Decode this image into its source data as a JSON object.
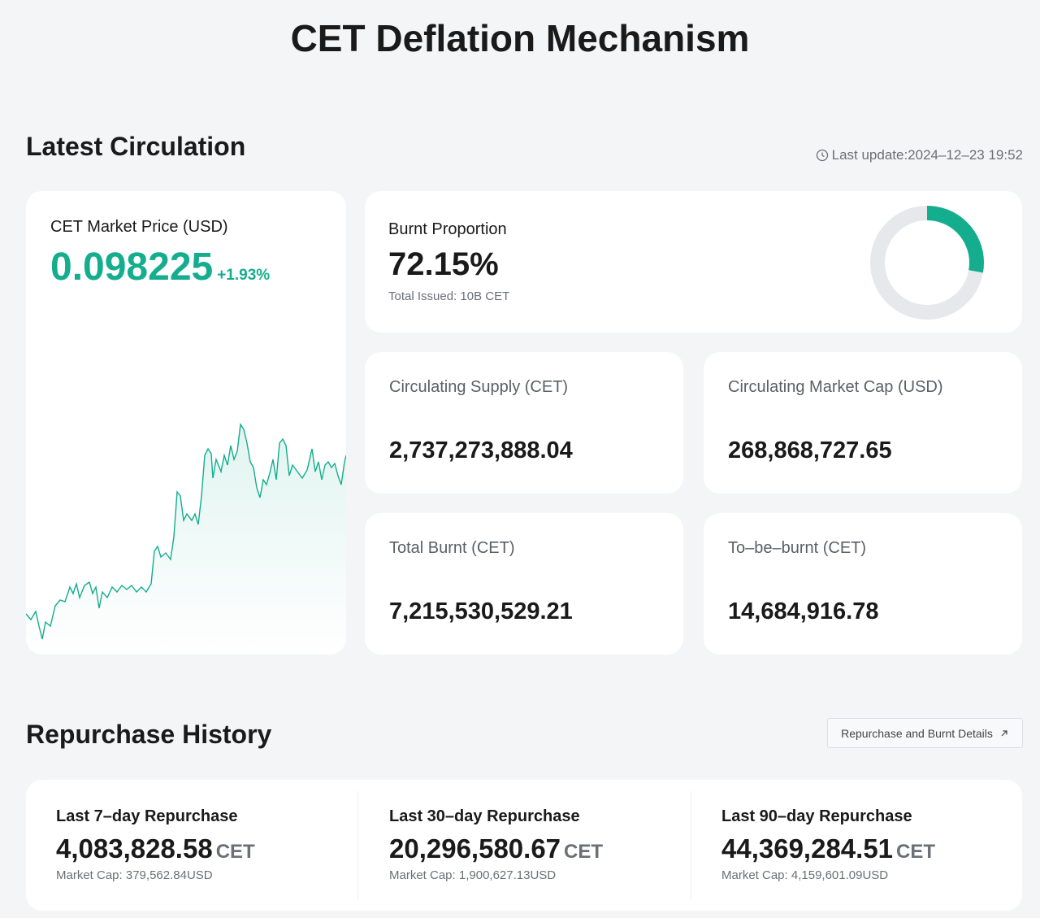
{
  "header": {
    "title": "CET Deflation Mechanism"
  },
  "latest_circulation": {
    "title": "Latest Circulation",
    "last_update": "Last update:2024–12–23 19:52",
    "price": {
      "label": "CET Market Price (USD)",
      "value": "0.098225",
      "change": "+1.93%"
    },
    "burnt": {
      "label": "Burnt Proportion",
      "proportion": 72.15,
      "proportion_label": "72.15%",
      "total_issued_label": "Total Issued:",
      "total_issued": "10B CET",
      "burnt_color": "#e6e8eb",
      "remaining_color": "#14ad8e"
    },
    "stats": [
      {
        "label": "Circulating Supply (CET)",
        "value": "2,737,273,888.04"
      },
      {
        "label": "Circulating Market Cap (USD)",
        "value": "268,868,727.65"
      },
      {
        "label": "Total Burnt (CET)",
        "value": "7,215,530,529.21"
      },
      {
        "label": "To–be–burnt (CET)",
        "value": "14,684,916.78"
      }
    ]
  },
  "repurchase_history": {
    "title": "Repurchase History",
    "button": "Repurchase and Burnt Details",
    "items": [
      {
        "label": "Last 7–day Repurchase",
        "amount": "4,083,828.58",
        "unit": "CET",
        "market_cap_label": "Market Cap:",
        "market_cap": "379,562.84USD"
      },
      {
        "label": "Last 30–day Repurchase",
        "amount": "20,296,580.67",
        "unit": "CET",
        "market_cap_label": "Market Cap:",
        "market_cap": "1,900,627.13USD"
      },
      {
        "label": "Last 90–day Repurchase",
        "amount": "44,369,284.51",
        "unit": "CET",
        "market_cap_label": "Market Cap:",
        "market_cap": "4,159,601.09USD"
      }
    ]
  }
}
